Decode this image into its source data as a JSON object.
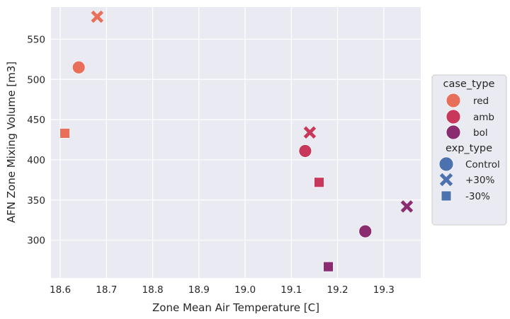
{
  "chart_data": {
    "type": "scatter",
    "xlabel": "Zone Mean Air Temperature [C]",
    "ylabel": "AFN Zone Mixing Volume [m3]",
    "xlim": [
      18.58,
      19.38
    ],
    "ylim": [
      253,
      590
    ],
    "x_ticks": [
      18.6,
      18.7,
      18.8,
      18.9,
      19.0,
      19.1,
      19.2,
      19.3
    ],
    "x_tick_labels": [
      "18.6",
      "18.7",
      "18.8",
      "18.9",
      "19.0",
      "19.1",
      "19.2",
      "19.3"
    ],
    "y_ticks": [
      300,
      350,
      400,
      450,
      500,
      550
    ],
    "y_tick_labels": [
      "300",
      "350",
      "400",
      "450",
      "500",
      "550"
    ],
    "grid": true,
    "legend_position": "right",
    "colors": {
      "red": "#e8705b",
      "amb": "#c8385b",
      "bol": "#8a2c6f",
      "legend_marker": "#4c72b0",
      "plot_bg": "#eaeaf2",
      "grid": "#ffffff"
    },
    "points": [
      {
        "case_type": "red",
        "exp_type": "Control",
        "x": 18.64,
        "y": 515
      },
      {
        "case_type": "red",
        "exp_type": "+30%",
        "x": 18.68,
        "y": 578
      },
      {
        "case_type": "red",
        "exp_type": "-30%",
        "x": 18.61,
        "y": 433
      },
      {
        "case_type": "amb",
        "exp_type": "Control",
        "x": 19.13,
        "y": 411
      },
      {
        "case_type": "amb",
        "exp_type": "+30%",
        "x": 19.14,
        "y": 434
      },
      {
        "case_type": "amb",
        "exp_type": "-30%",
        "x": 19.16,
        "y": 372
      },
      {
        "case_type": "bol",
        "exp_type": "Control",
        "x": 19.26,
        "y": 311
      },
      {
        "case_type": "bol",
        "exp_type": "+30%",
        "x": 19.35,
        "y": 342
      },
      {
        "case_type": "bol",
        "exp_type": "-30%",
        "x": 19.18,
        "y": 267
      }
    ],
    "legend": {
      "hue_title": "case_type",
      "hue_entries": [
        {
          "label": "red",
          "key": "red"
        },
        {
          "label": "amb",
          "key": "amb"
        },
        {
          "label": "bol",
          "key": "bol"
        }
      ],
      "style_title": "exp_type",
      "style_entries": [
        {
          "label": "Control",
          "marker": "circle"
        },
        {
          "label": "+30%",
          "marker": "x"
        },
        {
          "label": "-30%",
          "marker": "square"
        }
      ]
    }
  }
}
